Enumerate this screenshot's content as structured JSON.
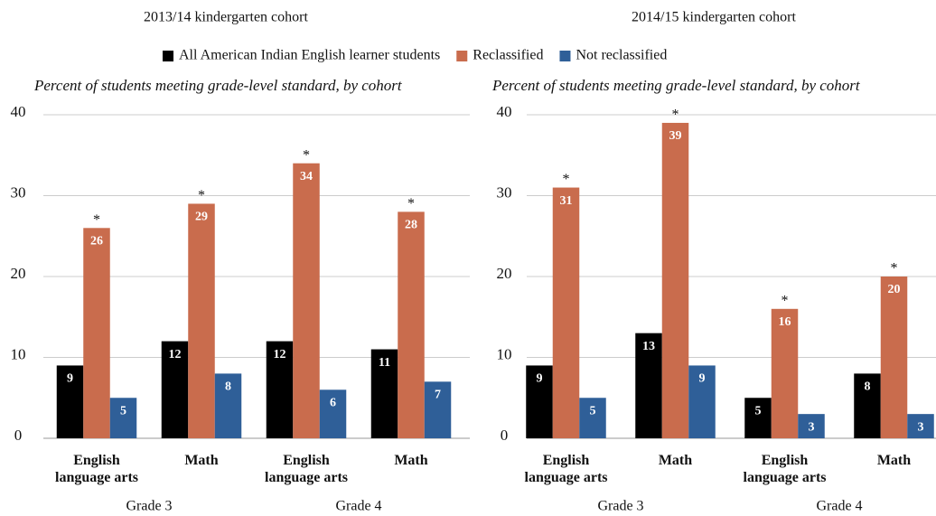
{
  "chart_data": [
    {
      "type": "bar",
      "title": "2013/14 kindergarten cohort",
      "subtitle": "Percent of students meeting grade-level standard, by cohort",
      "categories": [
        "English language arts",
        "Math",
        "English language arts",
        "Math"
      ],
      "groups": [
        "Grade 3",
        "Grade 4"
      ],
      "series": [
        {
          "name": "All American Indian English learner students",
          "color": "#000000",
          "values": [
            9,
            12,
            12,
            11
          ]
        },
        {
          "name": "Reclassified",
          "color": "#c96c4d",
          "values": [
            26,
            29,
            34,
            28
          ],
          "notes": [
            "*",
            "*",
            "*",
            "*"
          ]
        },
        {
          "name": "Not reclassified",
          "color": "#2f5f98",
          "values": [
            5,
            8,
            6,
            7
          ]
        }
      ],
      "ylim": [
        0,
        40
      ],
      "yticks": [
        0,
        10,
        20,
        30,
        40
      ],
      "grid": true,
      "legend": "top"
    },
    {
      "type": "bar",
      "title": "2014/15 kindergarten cohort",
      "subtitle": "Percent of students meeting grade-level standard, by cohort",
      "categories": [
        "English language arts",
        "Math",
        "English language arts",
        "Math"
      ],
      "groups": [
        "Grade 3",
        "Grade 4"
      ],
      "series": [
        {
          "name": "All American Indian English learner students",
          "color": "#000000",
          "values": [
            9,
            13,
            5,
            8
          ]
        },
        {
          "name": "Reclassified",
          "color": "#c96c4d",
          "values": [
            31,
            39,
            16,
            20
          ],
          "notes": [
            "*",
            "*",
            "*",
            "*"
          ]
        },
        {
          "name": "Not reclassified",
          "color": "#2f5f98",
          "values": [
            5,
            9,
            3,
            3
          ]
        }
      ],
      "ylim": [
        0,
        40
      ],
      "yticks": [
        0,
        10,
        20,
        30,
        40
      ],
      "grid": true
    }
  ]
}
